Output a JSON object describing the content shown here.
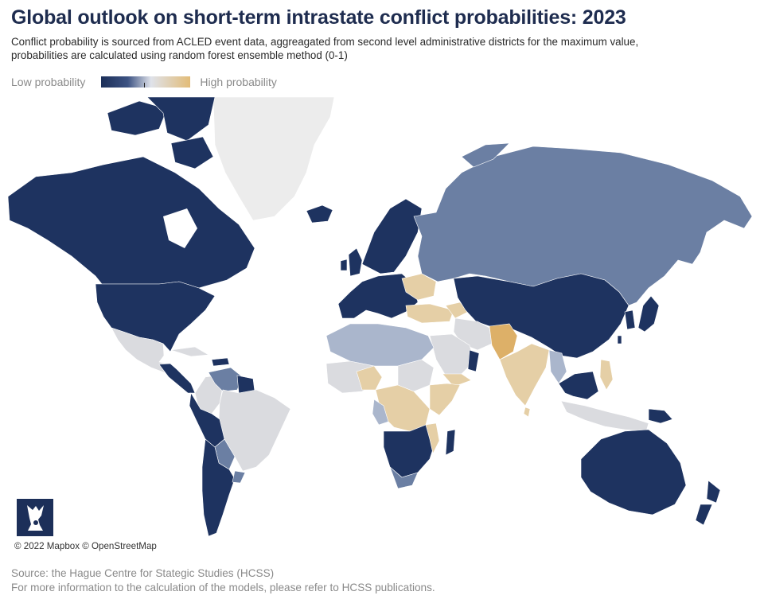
{
  "header": {
    "title": "Global outlook on short-term intrastate conflict probabilities: 2023",
    "subtitle_line1": "Conflict probability is sourced from ACLED event data, aggreagated from second level administrative districts for the maximum value,",
    "subtitle_line2": "probabilities are calculated using random forest ensemble method (0-1)"
  },
  "legend": {
    "low_label": "Low probability",
    "high_label": "High probability",
    "colors": [
      "#1c2f59",
      "#3d5383",
      "#dfe2ea",
      "#e2bc78"
    ]
  },
  "map": {
    "colors": {
      "very_low": "#1e3360",
      "low": "#6b7fa3",
      "medium_low": "#aab6cc",
      "neutral": "#dadbdf",
      "medium_high": "#e5cfa6",
      "high": "#ddb068",
      "no_data": "#ececec"
    },
    "attribution": "© 2022 Mapbox © OpenStreetMap"
  },
  "footer": {
    "source": "Source: the Hague Centre for Stategic Studies (HCSS)",
    "note": "For more information to the calculation of the models, please refer to HCSS publications."
  }
}
